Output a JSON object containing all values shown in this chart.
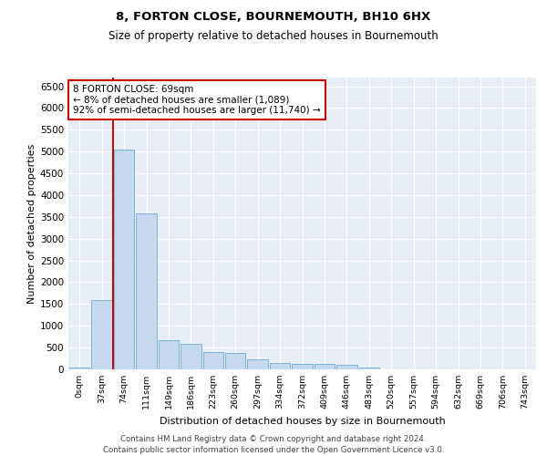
{
  "title1": "8, FORTON CLOSE, BOURNEMOUTH, BH10 6HX",
  "title2": "Size of property relative to detached houses in Bournemouth",
  "xlabel": "Distribution of detached houses by size in Bournemouth",
  "ylabel": "Number of detached properties",
  "bar_color": "#c5d8ee",
  "bar_edge_color": "#6baed6",
  "bg_color": "#e8eef6",
  "annotation_line1": "8 FORTON CLOSE: 69sqm",
  "annotation_line2": "← 8% of detached houses are smaller (1,089)",
  "annotation_line3": "92% of semi-detached houses are larger (11,740) →",
  "property_line_color": "#cc0000",
  "annotation_box_color": "#ffffff",
  "annotation_box_edge_color": "#cc0000",
  "categories": [
    "0sqm",
    "37sqm",
    "74sqm",
    "111sqm",
    "149sqm",
    "186sqm",
    "223sqm",
    "260sqm",
    "297sqm",
    "334sqm",
    "372sqm",
    "409sqm",
    "446sqm",
    "483sqm",
    "520sqm",
    "557sqm",
    "594sqm",
    "632sqm",
    "669sqm",
    "706sqm",
    "743sqm"
  ],
  "values": [
    50,
    1600,
    5050,
    3580,
    680,
    590,
    390,
    380,
    220,
    145,
    125,
    125,
    95,
    50,
    0,
    0,
    0,
    0,
    0,
    0,
    0
  ],
  "ylim": [
    0,
    6700
  ],
  "yticks": [
    0,
    500,
    1000,
    1500,
    2000,
    2500,
    3000,
    3500,
    4000,
    4500,
    5000,
    5500,
    6000,
    6500
  ],
  "footer1": "Contains HM Land Registry data © Crown copyright and database right 2024.",
  "footer2": "Contains public sector information licensed under the Open Government Licence v3.0."
}
